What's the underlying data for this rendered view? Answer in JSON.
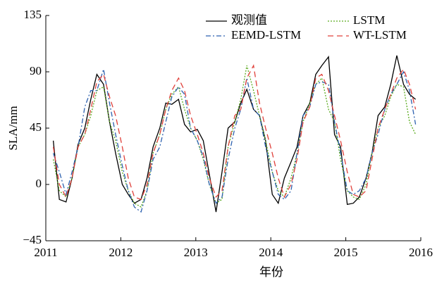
{
  "chart_data": {
    "type": "line",
    "xlabel": "年份",
    "ylabel": "SLA/mm",
    "x": [
      2011.1,
      2011.18,
      2011.27,
      2011.35,
      2011.43,
      2011.52,
      2011.6,
      2011.68,
      2011.77,
      2011.85,
      2011.93,
      2012.02,
      2012.1,
      2012.18,
      2012.27,
      2012.35,
      2012.43,
      2012.52,
      2012.6,
      2012.68,
      2012.77,
      2012.85,
      2012.93,
      2013.02,
      2013.1,
      2013.18,
      2013.27,
      2013.35,
      2013.43,
      2013.52,
      2013.6,
      2013.68,
      2013.77,
      2013.85,
      2013.93,
      2014.02,
      2014.1,
      2014.18,
      2014.27,
      2014.35,
      2014.43,
      2014.52,
      2014.6,
      2014.68,
      2014.77,
      2014.85,
      2014.93,
      2015.02,
      2015.1,
      2015.18,
      2015.27,
      2015.35,
      2015.43,
      2015.52,
      2015.6,
      2015.68,
      2015.77,
      2015.85,
      2015.93
    ],
    "series": [
      {
        "name": "观测值",
        "color": "#000000",
        "dash": "none",
        "values": [
          35,
          -12,
          -14,
          5,
          32,
          45,
          68,
          88,
          80,
          50,
          25,
          0,
          -8,
          -15,
          -12,
          5,
          30,
          45,
          65,
          64,
          68,
          48,
          42,
          44,
          35,
          8,
          -22,
          10,
          45,
          50,
          65,
          76,
          60,
          55,
          35,
          -8,
          -15,
          5,
          18,
          30,
          55,
          65,
          88,
          95,
          102,
          40,
          30,
          -16,
          -15,
          -10,
          5,
          25,
          55,
          62,
          80,
          103,
          80,
          72,
          68
        ]
      },
      {
        "name": "LSTM",
        "color": "#5aaa1e",
        "dash": "2,2",
        "values": [
          20,
          -5,
          -10,
          5,
          30,
          40,
          55,
          75,
          78,
          50,
          35,
          10,
          -5,
          -15,
          -18,
          -5,
          25,
          40,
          60,
          72,
          78,
          60,
          45,
          35,
          20,
          0,
          -15,
          -12,
          30,
          50,
          68,
          95,
          75,
          55,
          35,
          10,
          -5,
          -10,
          5,
          25,
          50,
          65,
          80,
          85,
          60,
          50,
          20,
          -5,
          -10,
          -12,
          0,
          25,
          45,
          55,
          70,
          80,
          78,
          50,
          40
        ]
      },
      {
        "name": "EEMD-LSTM",
        "color": "#2e62b0",
        "dash": "7,3,2,3",
        "values": [
          25,
          10,
          -8,
          10,
          30,
          62,
          75,
          75,
          92,
          65,
          40,
          15,
          -5,
          -18,
          -22,
          -5,
          20,
          30,
          50,
          70,
          78,
          72,
          45,
          35,
          22,
          0,
          -15,
          -10,
          20,
          45,
          60,
          85,
          60,
          55,
          30,
          10,
          -8,
          -12,
          -5,
          25,
          55,
          62,
          80,
          82,
          80,
          50,
          25,
          -5,
          -8,
          -5,
          5,
          25,
          40,
          60,
          72,
          80,
          90,
          75,
          48
        ]
      },
      {
        "name": "WT-LSTM",
        "color": "#e0403a",
        "dash": "8,5",
        "values": [
          30,
          0,
          -10,
          5,
          30,
          40,
          60,
          82,
          88,
          70,
          55,
          30,
          5,
          -10,
          -12,
          0,
          25,
          40,
          60,
          75,
          85,
          75,
          55,
          40,
          25,
          5,
          -10,
          -5,
          30,
          55,
          60,
          85,
          95,
          65,
          45,
          25,
          5,
          -10,
          0,
          20,
          50,
          62,
          85,
          88,
          75,
          55,
          35,
          10,
          -8,
          -10,
          -5,
          20,
          45,
          60,
          72,
          85,
          92,
          80,
          60
        ]
      }
    ],
    "xlim": [
      2011,
      2016
    ],
    "xticks": [
      2011,
      2012,
      2013,
      2014,
      2015,
      2016
    ],
    "ylim": [
      -45,
      135
    ],
    "yticks": [
      {
        "value": -45,
        "label": "−45"
      },
      0,
      45,
      90,
      135
    ]
  }
}
